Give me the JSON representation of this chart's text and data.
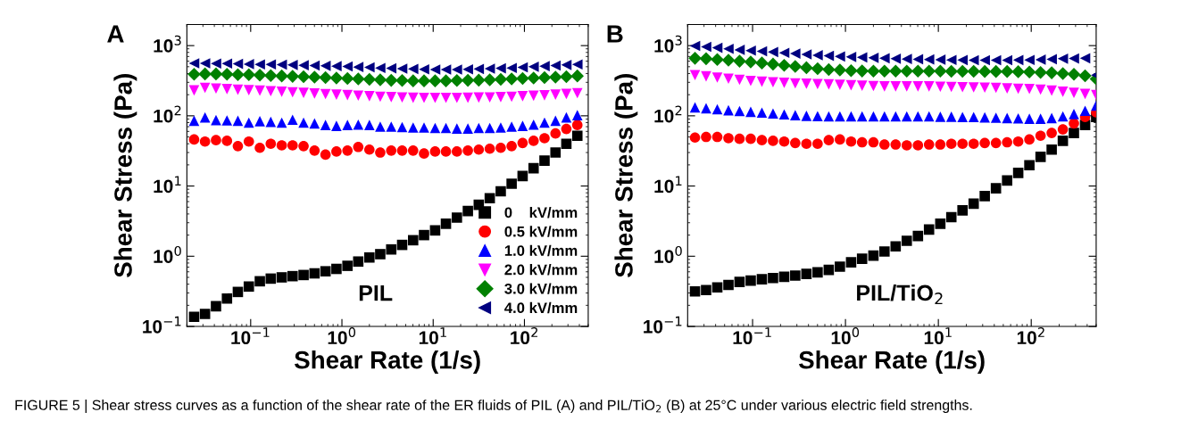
{
  "chart_data": [
    {
      "type": "scatter",
      "xlabel": "Shear Rate (1/s)",
      "ylabel": "Shear Stress (Pa)",
      "log": "xy",
      "grid": false,
      "legend": "bottom right",
      "xlim": [
        0.02,
        500
      ],
      "ylim": [
        0.1,
        2000
      ],
      "xticks": [
        {
          "value": 0.1,
          "label": "10$^{−1}$"
        },
        {
          "value": 1,
          "label": "10$^{0}$"
        },
        {
          "value": 10,
          "label": "10$^{1}$"
        },
        {
          "value": 100,
          "label": "10$^{2}$"
        }
      ],
      "yticks": [
        {
          "value": 0.1,
          "label": "10$^{−1}$"
        },
        {
          "value": 1,
          "label": "10$^{0}$"
        },
        {
          "value": 10,
          "label": "10$^{1}$"
        },
        {
          "value": 100,
          "label": "10$^{2}$"
        },
        {
          "value": 1000,
          "label": "10$^{3}$"
        }
      ],
      "x": [
        0.024,
        0.0316,
        0.0417,
        0.055,
        0.0724,
        0.0955,
        0.126,
        0.166,
        0.219,
        0.288,
        0.38,
        0.501,
        0.661,
        0.871,
        1.15,
        1.51,
        2.0,
        2.63,
        3.47,
        4.57,
        6.03,
        7.94,
        10.5,
        13.8,
        18.2,
        24,
        31.6,
        41.7,
        55,
        72.4,
        95.5,
        126,
        166,
        219,
        288,
        380
      ],
      "series": [
        {
          "name": "0    kV/mm",
          "color": "#000000",
          "marker": "square",
          "values": [
            0.137,
            0.151,
            0.194,
            0.25,
            0.31,
            0.37,
            0.44,
            0.48,
            0.5,
            0.52,
            0.54,
            0.57,
            0.61,
            0.66,
            0.73,
            0.84,
            0.96,
            1.07,
            1.25,
            1.45,
            1.69,
            2.0,
            2.33,
            2.9,
            3.55,
            4.4,
            5.4,
            6.7,
            8.4,
            10.8,
            13.9,
            17.9,
            23,
            30,
            40,
            52
          ]
        },
        {
          "name": "0.5 kV/mm",
          "color": "#ff0000",
          "marker": "circle",
          "values": [
            46,
            43,
            45,
            44,
            37,
            43,
            35,
            40,
            38,
            38,
            37,
            32,
            28,
            31,
            32,
            36,
            33,
            30,
            32,
            32,
            32,
            29,
            31,
            31,
            31,
            32,
            33,
            34,
            35,
            37,
            41,
            44,
            48,
            56,
            65,
            74
          ]
        },
        {
          "name": "1.0 kV/mm",
          "color": "#0000ff",
          "marker": "triangle",
          "values": [
            85,
            95,
            87,
            86,
            85,
            80,
            84,
            82,
            80,
            88,
            80,
            78,
            74,
            72,
            74,
            75,
            74,
            70,
            70,
            69,
            68,
            68,
            67,
            67,
            66,
            66,
            67,
            67,
            68,
            70,
            72,
            75,
            80,
            85,
            95,
            102
          ]
        },
        {
          "name": "2.0 kV/mm",
          "color": "#ff00ff",
          "marker": "triangle-down",
          "values": [
            230,
            250,
            245,
            240,
            235,
            232,
            228,
            224,
            220,
            216,
            212,
            208,
            204,
            200,
            197,
            194,
            190,
            187,
            185,
            183,
            181,
            180,
            180,
            180,
            180,
            181,
            182,
            183,
            185,
            187,
            190,
            193,
            196,
            200,
            205,
            210
          ]
        },
        {
          "name": "3.0 kV/mm",
          "color": "#008000",
          "marker": "diamond",
          "values": [
            390,
            395,
            395,
            390,
            385,
            385,
            380,
            375,
            370,
            365,
            360,
            355,
            350,
            345,
            340,
            335,
            330,
            325,
            320,
            318,
            315,
            315,
            315,
            315,
            318,
            320,
            322,
            325,
            330,
            335,
            340,
            345,
            350,
            355,
            360,
            370
          ]
        },
        {
          "name": "4.0 kV/mm",
          "color": "#000080",
          "marker": "triangle-left",
          "values": [
            560,
            560,
            555,
            555,
            550,
            545,
            540,
            540,
            535,
            530,
            525,
            520,
            515,
            510,
            505,
            495,
            490,
            480,
            475,
            470,
            465,
            460,
            455,
            455,
            455,
            460,
            465,
            470,
            475,
            480,
            490,
            500,
            510,
            520,
            530,
            540
          ]
        }
      ],
      "annotations": [
        "A",
        "PIL",
        "FIGURE 5 | Shear stress curves as a function of the shear rate of the ER fluids of PIL (A) and PIL/TiO$_{2}$ (B) at 25°C under various electric field strengths."
      ]
    },
    {
      "type": "scatter",
      "xlabel": "Shear Rate (1/s)",
      "ylabel": "Shear Stress (Pa)",
      "log": "xy",
      "grid": false,
      "xlim": [
        0.02,
        500
      ],
      "ylim": [
        0.1,
        2000
      ],
      "xticks": [
        {
          "value": 0.1,
          "label": "10$^{−1}$"
        },
        {
          "value": 1,
          "label": "10$^{0}$"
        },
        {
          "value": 10,
          "label": "10$^{1}$"
        },
        {
          "value": 100,
          "label": "10$^{2}$"
        }
      ],
      "yticks": [
        {
          "value": 0.1,
          "label": "10$^{−1}$"
        },
        {
          "value": 1,
          "label": "10$^{0}$"
        },
        {
          "value": 10,
          "label": "10$^{1}$"
        },
        {
          "value": 100,
          "label": "10$^{2}$"
        },
        {
          "value": 1000,
          "label": "10$^{3}$"
        }
      ],
      "x": [
        0.024,
        0.0316,
        0.0417,
        0.055,
        0.0724,
        0.0955,
        0.126,
        0.166,
        0.219,
        0.288,
        0.38,
        0.501,
        0.661,
        0.871,
        1.15,
        1.51,
        2.0,
        2.63,
        3.47,
        4.57,
        6.03,
        7.94,
        10.5,
        13.8,
        18.2,
        24,
        31.6,
        41.7,
        55,
        72.4,
        95.5,
        126,
        166,
        219,
        288,
        380,
        500
      ],
      "series": [
        {
          "color": "#000000",
          "marker": "square",
          "values": [
            0.315,
            0.33,
            0.36,
            0.39,
            0.43,
            0.45,
            0.47,
            0.49,
            0.51,
            0.53,
            0.56,
            0.59,
            0.64,
            0.71,
            0.82,
            0.92,
            1.02,
            1.17,
            1.38,
            1.66,
            1.94,
            2.4,
            2.9,
            3.6,
            4.5,
            5.6,
            7.2,
            9.3,
            12,
            15.4,
            19.8,
            26,
            33,
            44,
            57,
            74,
            96
          ]
        },
        {
          "color": "#ff0000",
          "marker": "circle",
          "values": [
            49,
            50,
            50,
            48,
            47,
            47,
            45,
            44,
            43,
            41,
            40,
            40,
            45,
            46,
            43,
            42,
            42,
            39,
            39,
            38,
            38,
            39,
            39,
            40,
            40,
            40,
            41,
            41,
            42,
            43,
            46,
            52,
            57,
            64,
            78,
            96,
            112
          ]
        },
        {
          "color": "#0000ff",
          "marker": "triangle",
          "values": [
            132,
            128,
            124,
            120,
            117,
            114,
            111,
            108,
            105,
            102,
            100,
            99,
            98,
            98,
            98,
            98,
            98,
            98,
            98,
            98,
            98,
            98,
            97,
            97,
            96,
            96,
            95,
            94,
            93,
            92,
            91,
            91,
            93,
            98,
            106,
            118,
            140
          ]
        },
        {
          "color": "#ff00ff",
          "marker": "triangle-down",
          "values": [
            380,
            365,
            350,
            338,
            325,
            314,
            306,
            300,
            295,
            290,
            286,
            283,
            280,
            276,
            272,
            268,
            265,
            262,
            262,
            262,
            262,
            262,
            260,
            258,
            256,
            254,
            252,
            250,
            246,
            243,
            241,
            236,
            228,
            220,
            212,
            205,
            198
          ]
        },
        {
          "color": "#008000",
          "marker": "diamond",
          "values": [
            660,
            650,
            635,
            620,
            600,
            585,
            565,
            545,
            525,
            505,
            485,
            470,
            455,
            448,
            440,
            435,
            433,
            433,
            433,
            433,
            433,
            433,
            432,
            430,
            430,
            430,
            428,
            428,
            428,
            425,
            420,
            415,
            410,
            400,
            390,
            372,
            336
          ]
        },
        {
          "color": "#000080",
          "marker": "triangle-left",
          "values": [
            990,
            960,
            930,
            900,
            870,
            850,
            830,
            810,
            790,
            770,
            750,
            730,
            715,
            700,
            690,
            680,
            670,
            660,
            650,
            645,
            640,
            635,
            630,
            625,
            622,
            620,
            620,
            620,
            620,
            622,
            625,
            630,
            640,
            650,
            655,
            660,
            380
          ]
        }
      ],
      "annotations": [
        "B",
        "PIL/TiO$_{2}$"
      ]
    }
  ]
}
